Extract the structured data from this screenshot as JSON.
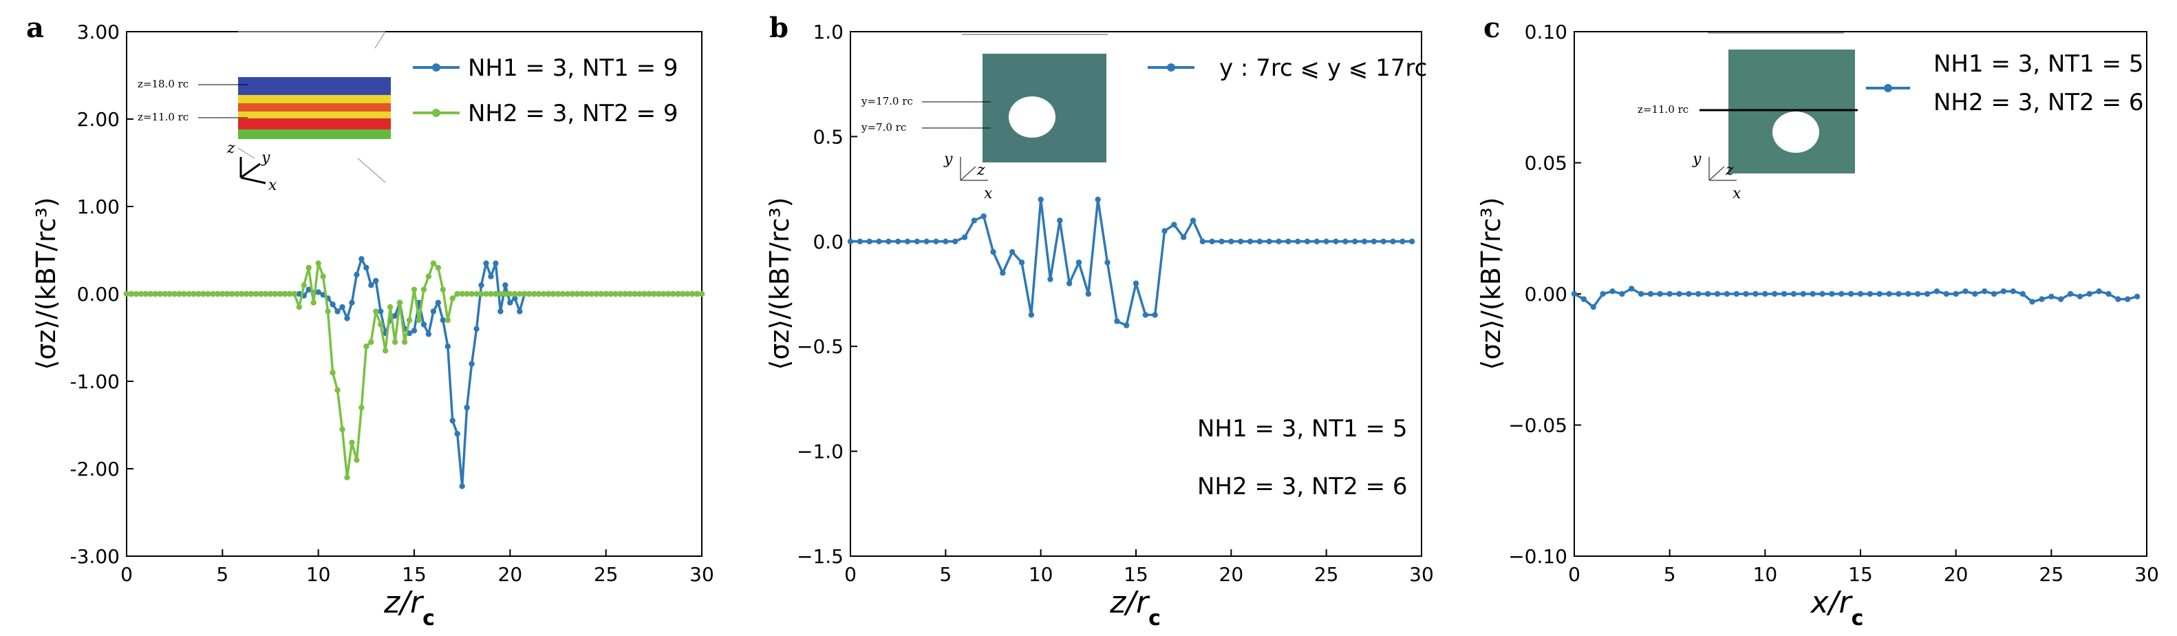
{
  "colors": {
    "blue": "#2f78b7",
    "green": "#7ac143",
    "axis": "#000000",
    "inset_blue": "#3548a8",
    "inset_green": "#63b93f",
    "inset_red": "#e0282a",
    "inset_yellow": "#efd42c"
  },
  "panels": [
    {
      "letter": "a",
      "xlabel_main": "z/r",
      "xlabel_sub": "c",
      "ylabel": "⟨σz⟩/(kBT/rc³)",
      "inset": {
        "labels": [
          "z=18.0 rc",
          "z=11.0 rc"
        ],
        "axes": [
          "z",
          "y",
          "x"
        ]
      },
      "legend": [
        {
          "text": "NH1 = 3, NT1 = 9",
          "color": "#2f78b7"
        },
        {
          "text": "NH2 = 3, NT2 = 9",
          "color": "#7ac143"
        }
      ],
      "notes": []
    },
    {
      "letter": "b",
      "xlabel_main": "z/r",
      "xlabel_sub": "c",
      "ylabel": "⟨σz⟩/(kBT/rc³)",
      "inset": {
        "labels": [
          "y=17.0 rc",
          "y=7.0 rc"
        ],
        "axes": [
          "y",
          "z",
          "x"
        ]
      },
      "legend": [
        {
          "text": "y : 7rc ⩽ y ⩽ 17rc",
          "color": "#2f78b7"
        }
      ],
      "notes": [
        "NH1 = 3, NT1 = 5",
        "NH2 = 3, NT2 = 6"
      ]
    },
    {
      "letter": "c",
      "xlabel_main": "x/r",
      "xlabel_sub": "c",
      "ylabel": "⟨σz⟩/(kBT/rc³)",
      "inset": {
        "labels": [
          "z=11.0 rc"
        ],
        "axes": [
          "y",
          "z",
          "x"
        ]
      },
      "legend": [
        {
          "text": "NH1 = 3, NT1 = 5",
          "color": "#2f78b7"
        },
        {
          "text": "NH2 = 3, NT2 = 6",
          "color": "#2f78b7"
        }
      ],
      "notes": []
    }
  ],
  "chart_data": [
    {
      "type": "line",
      "panel": "a",
      "xlabel": "z/rc",
      "ylabel": "⟨σz⟩/(kBT/rc³)",
      "xlim": [
        0,
        30
      ],
      "ylim": [
        -3.0,
        3.0
      ],
      "xticks": [
        "0",
        "5",
        "10",
        "15",
        "20",
        "25",
        "30"
      ],
      "yticks": [
        "-3.00",
        "-2.00",
        "-1.00",
        "0.00",
        "1.00",
        "2.00",
        "3.00"
      ],
      "legend_position": "top-right",
      "series": [
        {
          "name": "NH1 = 3, NT1 = 9",
          "color": "#2f78b7",
          "x": [
            0,
            0.25,
            0.5,
            0.75,
            1,
            1.25,
            1.5,
            1.75,
            2,
            2.25,
            2.5,
            2.75,
            3,
            3.25,
            3.5,
            3.75,
            4,
            4.25,
            4.5,
            4.75,
            5,
            5.25,
            5.5,
            5.75,
            6,
            6.25,
            6.5,
            6.75,
            7,
            7.25,
            7.5,
            7.75,
            8,
            8.25,
            8.5,
            8.75,
            9,
            9.25,
            9.5,
            9.75,
            10,
            10.25,
            10.5,
            10.75,
            11,
            11.25,
            11.5,
            11.75,
            12,
            12.25,
            12.5,
            12.75,
            13,
            13.25,
            13.5,
            13.75,
            14,
            14.25,
            14.5,
            14.75,
            15,
            15.25,
            15.5,
            15.75,
            16,
            16.25,
            16.5,
            16.75,
            17,
            17.25,
            17.5,
            17.75,
            18,
            18.25,
            18.5,
            18.75,
            19,
            19.25,
            19.5,
            19.75,
            20,
            20.25,
            20.5,
            20.75,
            21,
            21.25,
            21.5,
            21.75,
            22,
            22.25,
            22.5,
            22.75,
            23,
            23.25,
            23.5,
            23.75,
            24,
            24.25,
            24.5,
            24.75,
            25,
            25.25,
            25.5,
            25.75,
            26,
            26.25,
            26.5,
            26.75,
            27,
            27.25,
            27.5,
            27.75,
            28,
            28.25,
            28.5,
            28.75,
            29,
            29.25,
            29.5,
            29.75,
            30
          ],
          "y": [
            0,
            0,
            0,
            0,
            0,
            0,
            0,
            0,
            0,
            0,
            0,
            0,
            0,
            0,
            0,
            0,
            0,
            0,
            0,
            0,
            0,
            0,
            0,
            0,
            0,
            0,
            0,
            0,
            0,
            0,
            0,
            0,
            0,
            0,
            0,
            0,
            0,
            -0.02,
            0.05,
            0.01,
            0.02,
            -0.01,
            -0.05,
            -0.12,
            -0.2,
            -0.15,
            -0.28,
            -0.1,
            0.22,
            0.4,
            0.3,
            0.1,
            0.15,
            -0.2,
            -0.45,
            -0.3,
            -0.25,
            -0.1,
            -0.4,
            -0.45,
            -0.42,
            -0.1,
            -0.35,
            -0.46,
            -0.2,
            -0.1,
            -0.3,
            -0.6,
            -1.45,
            -1.6,
            -2.2,
            -1.3,
            -0.8,
            -0.4,
            0.1,
            0.35,
            0.2,
            0.35,
            -0.2,
            0.1,
            -0.1,
            -0.05,
            -0.2,
            0,
            0,
            0,
            0,
            0,
            0,
            0,
            0,
            0,
            0,
            0,
            0,
            0,
            0,
            0,
            0,
            0,
            0,
            0,
            0,
            0,
            0,
            0,
            0,
            0,
            0,
            0,
            0,
            0,
            0,
            0,
            0,
            0,
            0,
            0,
            0,
            0,
            0
          ],
          "comment_range": [
            9.0,
            20.5
          ]
        },
        {
          "name": "NH2 = 3, NT2 = 9",
          "color": "#7ac143",
          "x": [
            0,
            0.25,
            0.5,
            0.75,
            1,
            1.25,
            1.5,
            1.75,
            2,
            2.25,
            2.5,
            2.75,
            3,
            3.25,
            3.5,
            3.75,
            4,
            4.25,
            4.5,
            4.75,
            5,
            5.25,
            5.5,
            5.75,
            6,
            6.25,
            6.5,
            6.75,
            7,
            7.25,
            7.5,
            7.75,
            8,
            8.25,
            8.5,
            8.75,
            9,
            9.25,
            9.5,
            9.75,
            10,
            10.25,
            10.5,
            10.75,
            11,
            11.25,
            11.5,
            11.75,
            12,
            12.25,
            12.5,
            12.75,
            13,
            13.25,
            13.5,
            13.75,
            14,
            14.25,
            14.5,
            14.75,
            15,
            15.25,
            15.5,
            15.75,
            16,
            16.25,
            16.5,
            16.75,
            17,
            17.25,
            17.5,
            17.75,
            18,
            18.25,
            18.5,
            18.75,
            19,
            19.25,
            19.5,
            19.75,
            20,
            20.25,
            20.5,
            20.75,
            21,
            21.25,
            21.5,
            21.75,
            22,
            22.25,
            22.5,
            22.75,
            23,
            23.25,
            23.5,
            23.75,
            24,
            24.25,
            24.5,
            24.75,
            25,
            25.25,
            25.5,
            25.75,
            26,
            26.25,
            26.5,
            26.75,
            27,
            27.25,
            27.5,
            27.75,
            28,
            28.25,
            28.5,
            28.75,
            29,
            29.25,
            29.5,
            29.75,
            30
          ],
          "y": [
            0,
            0,
            0,
            0,
            0,
            0,
            0,
            0,
            0,
            0,
            0,
            0,
            0,
            0,
            0,
            0,
            0,
            0,
            0,
            0,
            0,
            0,
            0,
            0,
            0,
            0,
            0,
            0,
            0,
            0,
            0,
            0,
            0,
            0,
            0,
            0,
            -0.15,
            0.1,
            0.3,
            -0.1,
            0.35,
            0.2,
            -0.2,
            -0.9,
            -1.1,
            -1.55,
            -2.1,
            -1.7,
            -1.9,
            -1.3,
            -0.6,
            -0.55,
            -0.2,
            -0.35,
            -0.65,
            -0.15,
            -0.55,
            -0.1,
            -0.55,
            -0.3,
            0.05,
            -0.3,
            0.05,
            0.2,
            0.35,
            0.3,
            0.05,
            -0.3,
            -0.05,
            0,
            0,
            0,
            0,
            0,
            0,
            0,
            0,
            0,
            0,
            0,
            0,
            0,
            0,
            0,
            0,
            0,
            0,
            0,
            0,
            0,
            0,
            0,
            0,
            0,
            0,
            0,
            0,
            0,
            0,
            0,
            0,
            0,
            0,
            0,
            0,
            0,
            0,
            0,
            0,
            0,
            0,
            0,
            0,
            0,
            0,
            0,
            0,
            0,
            0,
            0,
            0
          ]
        }
      ]
    },
    {
      "type": "line",
      "panel": "b",
      "xlabel": "z/rc",
      "ylabel": "⟨σz⟩/(kBT/rc³)",
      "xlim": [
        0,
        30
      ],
      "ylim": [
        -1.5,
        1.0
      ],
      "xticks": [
        "0",
        "5",
        "10",
        "15",
        "20",
        "25",
        "30"
      ],
      "yticks": [
        "−1.5",
        "−1.0",
        "−0.5",
        "0.0",
        "0.5",
        "1.0"
      ],
      "legend_position": "top-right",
      "series": [
        {
          "name": "y : 7rc ⩽ y ⩽ 17rc",
          "color": "#2f78b7",
          "x": [
            0,
            0.5,
            1,
            1.5,
            2,
            2.5,
            3,
            3.5,
            4,
            4.5,
            5,
            5.5,
            6,
            6.5,
            7,
            7.5,
            8,
            8.5,
            9,
            9.5,
            10,
            10.5,
            11,
            11.5,
            12,
            12.5,
            13,
            13.5,
            14,
            14.5,
            15,
            15.5,
            16,
            16.5,
            17,
            17.5,
            18,
            18.5,
            19,
            19.5,
            20,
            20.5,
            21,
            21.5,
            22,
            22.5,
            23,
            23.5,
            24,
            24.5,
            25,
            25.5,
            26,
            26.5,
            27,
            27.5,
            28,
            28.5,
            29,
            29.5
          ],
          "y": [
            0,
            0,
            0,
            0,
            0,
            0,
            0,
            0,
            0,
            0,
            0,
            0,
            0.02,
            0.1,
            0.12,
            -0.05,
            -0.15,
            -0.05,
            -0.1,
            -0.35,
            0.2,
            -0.18,
            0.1,
            -0.2,
            -0.1,
            -0.25,
            0.2,
            -0.1,
            -0.38,
            -0.4,
            -0.2,
            -0.35,
            -0.35,
            0.05,
            0.08,
            0.02,
            0.1,
            0,
            0,
            0,
            0,
            0,
            0,
            0,
            0,
            0,
            0,
            0,
            0,
            0,
            0,
            0,
            0,
            0,
            0,
            0,
            0,
            0,
            0,
            0
          ]
        }
      ]
    },
    {
      "type": "line",
      "panel": "c",
      "xlabel": "x/rc",
      "ylabel": "⟨σz⟩/(kBT/rc³)",
      "xlim": [
        0,
        30
      ],
      "ylim": [
        -0.1,
        0.1
      ],
      "xticks": [
        "0",
        "5",
        "10",
        "15",
        "20",
        "25",
        "30"
      ],
      "yticks": [
        "−0.10",
        "−0.05",
        "0.00",
        "0.05",
        "0.10"
      ],
      "legend_position": "top-right",
      "series": [
        {
          "name": "NH1 = 3, NT1 = 5 / NH2 = 3, NT2 = 6",
          "color": "#2f78b7",
          "x": [
            0,
            0.5,
            1,
            1.5,
            2,
            2.5,
            3,
            3.5,
            4,
            4.5,
            5,
            5.5,
            6,
            6.5,
            7,
            7.5,
            8,
            8.5,
            9,
            9.5,
            10,
            10.5,
            11,
            11.5,
            12,
            12.5,
            13,
            13.5,
            14,
            14.5,
            15,
            15.5,
            16,
            16.5,
            17,
            17.5,
            18,
            18.5,
            19,
            19.5,
            20,
            20.5,
            21,
            21.5,
            22,
            22.5,
            23,
            23.5,
            24,
            24.5,
            25,
            25.5,
            26,
            26.5,
            27,
            27.5,
            28,
            28.5,
            29,
            29.5
          ],
          "y": [
            0,
            -0.002,
            -0.005,
            0,
            0.001,
            0,
            0.002,
            0,
            0,
            0,
            0,
            0,
            0,
            0,
            0,
            0,
            0,
            0,
            0,
            0,
            0,
            0,
            0,
            0,
            0,
            0,
            0,
            0,
            0,
            0,
            0,
            0,
            0,
            0,
            0,
            0,
            0,
            0,
            0.001,
            0,
            0,
            0.001,
            0,
            0.001,
            0,
            0.001,
            0.001,
            0,
            -0.003,
            -0.002,
            -0.001,
            -0.002,
            0,
            -0.001,
            0,
            0.001,
            0,
            -0.002,
            -0.002,
            -0.001
          ]
        }
      ]
    }
  ]
}
